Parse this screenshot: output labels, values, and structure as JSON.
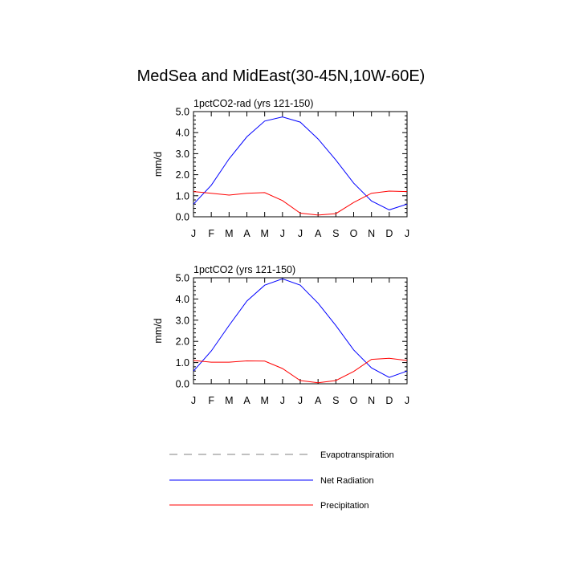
{
  "title": "MedSea and MidEast(30-45N,10W-60E)",
  "colors": {
    "net_radiation": "#0000ff",
    "precipitation": "#ff0000",
    "evapotranspiration": "#808080"
  },
  "legend": [
    {
      "name": "Evapotranspiration",
      "style": "dashed",
      "color": "#808080"
    },
    {
      "name": "Net Radiation",
      "style": "solid",
      "color": "#0000ff"
    },
    {
      "name": "Precipitation",
      "style": "solid",
      "color": "#ff0000"
    }
  ],
  "chart_data": [
    {
      "type": "line",
      "title": "1pctCO2-rad (yrs 121-150)",
      "ylabel": "mm/d",
      "xlabel": "",
      "ylim": [
        0,
        5
      ],
      "yticks": [
        "0.0",
        "1.0",
        "2.0",
        "3.0",
        "4.0",
        "5.0"
      ],
      "categories": [
        "J",
        "F",
        "M",
        "A",
        "M",
        "J",
        "J",
        "A",
        "S",
        "O",
        "N",
        "D",
        "J"
      ],
      "series": [
        {
          "name": "Net Radiation",
          "values": [
            0.6,
            1.5,
            2.75,
            3.8,
            4.55,
            4.75,
            4.5,
            3.7,
            2.7,
            1.6,
            0.75,
            0.33,
            0.6
          ]
        },
        {
          "name": "Precipitation",
          "values": [
            1.2,
            1.12,
            1.03,
            1.12,
            1.15,
            0.77,
            0.17,
            0.08,
            0.15,
            0.68,
            1.12,
            1.22,
            1.2
          ]
        }
      ]
    },
    {
      "type": "line",
      "title": "1pctCO2 (yrs 121-150)",
      "ylabel": "mm/d",
      "xlabel": "",
      "ylim": [
        0,
        5
      ],
      "yticks": [
        "0.0",
        "1.0",
        "2.0",
        "3.0",
        "4.0",
        "5.0"
      ],
      "categories": [
        "J",
        "F",
        "M",
        "A",
        "M",
        "J",
        "J",
        "A",
        "S",
        "O",
        "N",
        "D",
        "J"
      ],
      "series": [
        {
          "name": "Net Radiation",
          "values": [
            0.6,
            1.55,
            2.75,
            3.9,
            4.65,
            4.95,
            4.65,
            3.8,
            2.75,
            1.6,
            0.75,
            0.3,
            0.6
          ]
        },
        {
          "name": "Precipitation",
          "values": [
            1.1,
            1.02,
            1.02,
            1.08,
            1.07,
            0.72,
            0.15,
            0.05,
            0.15,
            0.58,
            1.15,
            1.2,
            1.1
          ]
        }
      ]
    }
  ]
}
